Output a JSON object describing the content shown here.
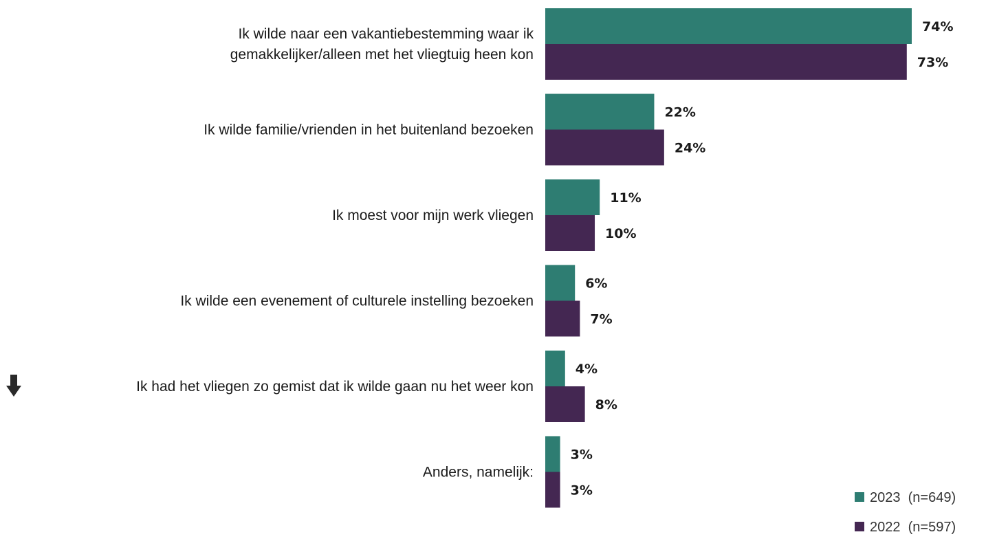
{
  "chart_data": {
    "type": "bar",
    "orientation": "horizontal",
    "categories": [
      [
        "Ik wilde naar een vakantiebestemming waar ik",
        "gemakkelijker/alleen met het vliegtuig heen kon"
      ],
      [
        "Ik wilde familie/vrienden in het buitenland bezoeken"
      ],
      [
        "Ik moest voor mijn werk vliegen"
      ],
      [
        "Ik wilde een evenement of culturele instelling bezoeken"
      ],
      [
        "Ik had het vliegen zo gemist dat ik wilde gaan nu het weer kon"
      ],
      [
        "Anders, namelijk:"
      ]
    ],
    "category_icons": [
      null,
      null,
      null,
      null,
      "arrow-down-icon",
      null
    ],
    "series": [
      {
        "name": "2023",
        "legend_label": "2023  (n=649)",
        "color": "#2e7d72",
        "values": [
          74,
          22,
          11,
          6,
          4,
          3
        ],
        "labels": [
          "74%",
          "22%",
          "11%",
          "6%",
          "4%",
          "3%"
        ]
      },
      {
        "name": "2022",
        "legend_label": "2022  (n=597)",
        "color": "#442752",
        "values": [
          73,
          24,
          10,
          7,
          8,
          3
        ],
        "labels": [
          "73%",
          "24%",
          "10%",
          "7%",
          "8%",
          "3%"
        ]
      }
    ],
    "unit": "%",
    "xlim": [
      0,
      74
    ],
    "grid": false,
    "legend_position": "bottom-right"
  }
}
